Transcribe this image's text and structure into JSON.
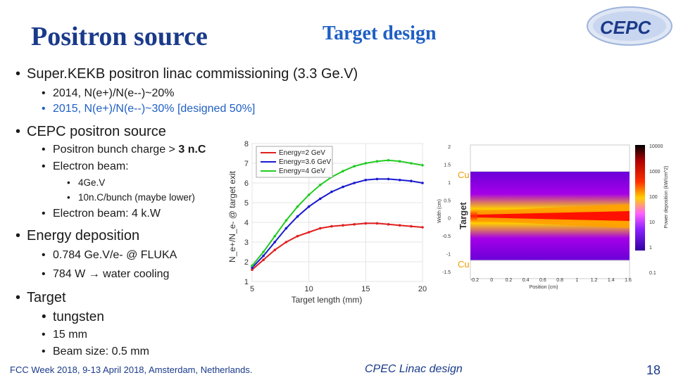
{
  "header": {
    "title": "Positron source",
    "subtitle": "Target design",
    "logo_text": "CEPC"
  },
  "bullets": {
    "b1": "Super.KEKB  positron linac commissioning (3.3 Ge.V)",
    "b1_1": "2014, N(e+)/N(e--)~20%",
    "b1_2": "2015, N(e+)/N(e--)~30% [designed 50%]",
    "b2": "CEPC positron source",
    "b2_1_pre": "Positron bunch charge > ",
    "b2_1_bold": "3 n.C",
    "b2_2": "Electron beam:",
    "b2_2_1": "4Ge.V",
    "b2_2_2": "10n.C/bunch (maybe lower)",
    "b2_3": "Electron beam: 4 k.W",
    "b3": "Energy deposition",
    "b3_1": "0.784 Ge.V/e- @ FLUKA",
    "b3_2_pre": "784 W ",
    "b3_2_arrow": "→",
    "b3_2_post": " water cooling",
    "b4": "Target",
    "b4_1": "tungsten",
    "b4_2": "15 mm",
    "b4_3": "Beam size: 0.5 mm"
  },
  "chart_data": {
    "type": "line",
    "xlabel": "Target length (mm)",
    "ylabel": "N_e+/N_e- @ target exit",
    "xlim": [
      5,
      20
    ],
    "ylim": [
      1,
      8
    ],
    "xticks": [
      5,
      10,
      15,
      20
    ],
    "yticks": [
      1,
      2,
      3,
      4,
      5,
      6,
      7,
      8
    ],
    "legend_position": "top-left",
    "series": [
      {
        "name": "Energy=2 GeV",
        "color": "#e02020",
        "x": [
          5,
          6,
          7,
          8,
          9,
          10,
          11,
          12,
          13,
          14,
          15,
          16,
          17,
          18,
          19,
          20
        ],
        "y": [
          1.6,
          2.1,
          2.6,
          3.0,
          3.3,
          3.5,
          3.7,
          3.8,
          3.85,
          3.9,
          3.95,
          3.95,
          3.9,
          3.85,
          3.8,
          3.75
        ]
      },
      {
        "name": "Energy=3.6 GeV",
        "color": "#1a1ad0",
        "x": [
          5,
          6,
          7,
          8,
          9,
          10,
          11,
          12,
          13,
          14,
          15,
          16,
          17,
          18,
          19,
          20
        ],
        "y": [
          1.7,
          2.3,
          3.0,
          3.7,
          4.3,
          4.8,
          5.2,
          5.55,
          5.8,
          6.0,
          6.15,
          6.2,
          6.2,
          6.15,
          6.1,
          6.0
        ]
      },
      {
        "name": "Energy=4 GeV",
        "color": "#22cc22",
        "x": [
          5,
          6,
          7,
          8,
          9,
          10,
          11,
          12,
          13,
          14,
          15,
          16,
          17,
          18,
          19,
          20
        ],
        "y": [
          1.8,
          2.5,
          3.3,
          4.1,
          4.8,
          5.4,
          5.9,
          6.3,
          6.6,
          6.85,
          7.0,
          7.1,
          7.15,
          7.1,
          7.0,
          6.9
        ]
      }
    ]
  },
  "heatmap": {
    "xlabel": "Position (cm)",
    "ylabel": "Width (cm)",
    "colorbar_label": "Power deposition (kW/cm^2)",
    "xticks": [
      "-0.2",
      "0",
      "0.2",
      "0.4",
      "0.6",
      "0.8",
      "1",
      "1.2",
      "1.4",
      "1.6"
    ],
    "yticks": [
      "2",
      "1.5",
      "1",
      "0.5",
      "0",
      "-0.5",
      "-1",
      "-1.5"
    ],
    "colorbar_ticks": [
      "10000",
      "1000",
      "100",
      "10",
      "1",
      "0.1"
    ],
    "label_top": "Cu",
    "label_mid": "Target",
    "label_bottom": "Cu"
  },
  "footer": {
    "left": "FCC Week 2018, 9-13 April 2018, Amsterdam, Netherlands.",
    "middle": "CPEC Linac design",
    "page": "18"
  }
}
